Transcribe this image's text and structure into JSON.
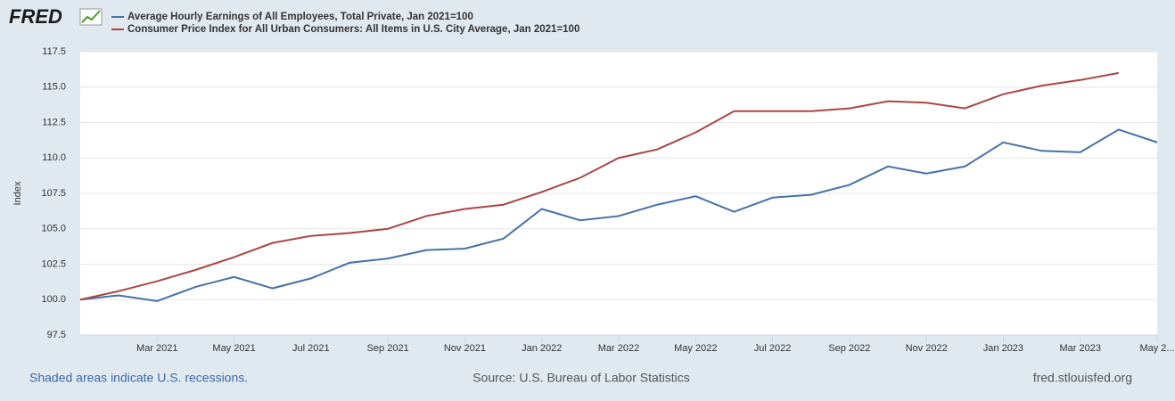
{
  "logo": "FRED",
  "footer": {
    "recessions": "Shaded areas indicate U.S. recessions.",
    "source": "Source: U.S. Bureau of Labor Statistics",
    "site": "fred.stlouisfed.org"
  },
  "chart_data": {
    "type": "line",
    "y_label": "Index",
    "x": [
      "2021-01",
      "2021-02",
      "2021-03",
      "2021-04",
      "2021-05",
      "2021-06",
      "2021-07",
      "2021-08",
      "2021-09",
      "2021-10",
      "2021-11",
      "2021-12",
      "2022-01",
      "2022-02",
      "2022-03",
      "2022-04",
      "2022-05",
      "2022-06",
      "2022-07",
      "2022-08",
      "2022-09",
      "2022-10",
      "2022-11",
      "2022-12",
      "2023-01",
      "2023-02",
      "2023-03",
      "2023-04",
      "2023-05"
    ],
    "xlim": [
      "2021-01",
      "2023-05"
    ],
    "xticks": [
      {
        "value": "2021-03",
        "label": "Mar 2021"
      },
      {
        "value": "2021-05",
        "label": "May 2021"
      },
      {
        "value": "2021-07",
        "label": "Jul 2021"
      },
      {
        "value": "2021-09",
        "label": "Sep 2021"
      },
      {
        "value": "2021-11",
        "label": "Nov 2021"
      },
      {
        "value": "2022-01",
        "label": "Jan 2022"
      },
      {
        "value": "2022-03",
        "label": "Mar 2022"
      },
      {
        "value": "2022-05",
        "label": "May 2022"
      },
      {
        "value": "2022-07",
        "label": "Jul 2022"
      },
      {
        "value": "2022-09",
        "label": "Sep 2022"
      },
      {
        "value": "2022-11",
        "label": "Nov 2022"
      },
      {
        "value": "2023-01",
        "label": "Jan 2023"
      },
      {
        "value": "2023-03",
        "label": "Mar 2023"
      },
      {
        "value": "2023-05",
        "label": "May 2..."
      }
    ],
    "ylim": [
      97.5,
      117.5
    ],
    "yticks": [
      97.5,
      {
        "value": 100,
        "label": "100.0"
      },
      102.5,
      {
        "value": 105,
        "label": "105.0"
      },
      107.5,
      {
        "value": 110,
        "label": "110.0"
      },
      112.5,
      {
        "value": 115,
        "label": "115.0"
      },
      117.5
    ],
    "grid": true,
    "series": [
      {
        "name": "Average Hourly Earnings of All Employees, Total Private, Jan 2021=100",
        "color": "#4572a7",
        "values": [
          100.0,
          100.3,
          99.9,
          100.9,
          101.6,
          100.8,
          101.5,
          102.6,
          102.9,
          103.5,
          103.6,
          104.3,
          106.4,
          105.6,
          105.9,
          106.7,
          107.3,
          106.2,
          107.2,
          107.4,
          108.1,
          109.4,
          108.9,
          109.4,
          111.1,
          110.5,
          110.4,
          112.0,
          111.1
        ]
      },
      {
        "name": "Consumer Price Index for All Urban Consumers: All Items in U.S. City Average, Jan 2021=100",
        "color": "#aa4643",
        "values": [
          100.0,
          100.6,
          101.3,
          102.1,
          103.0,
          104.0,
          104.5,
          104.7,
          105.0,
          105.9,
          106.4,
          106.7,
          107.6,
          108.6,
          110.0,
          110.6,
          111.8,
          113.3,
          113.3,
          113.3,
          113.5,
          114.0,
          113.9,
          113.5,
          114.5,
          115.1,
          115.5,
          116.0,
          null
        ]
      }
    ]
  }
}
